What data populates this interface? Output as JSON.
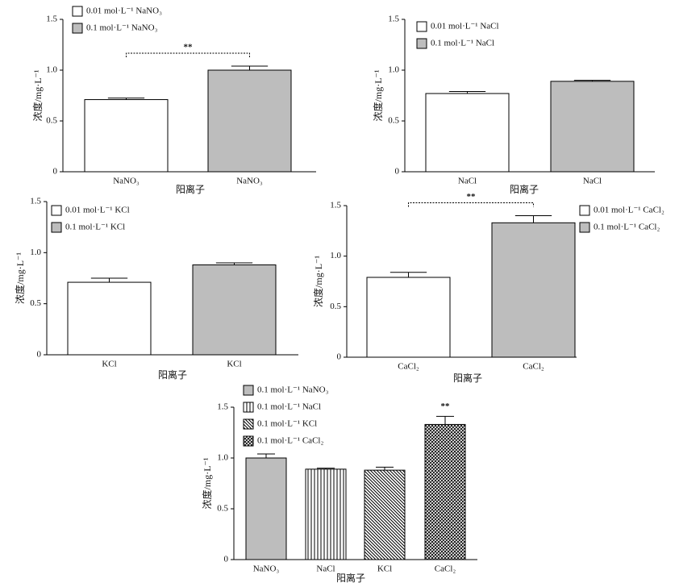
{
  "chart_data": [
    {
      "type": "bar",
      "ylabel": "浓度/mg·L⁻¹",
      "xlabel": "阳离子",
      "categories": [
        "NaNO₃",
        "NaNO₃"
      ],
      "series": [
        {
          "name": "0.01 mol·L⁻¹ NaNO₃",
          "color": "#ffffff",
          "pattern": "solid",
          "values": [
            0.71,
            null
          ],
          "errors": [
            0.015,
            null
          ]
        },
        {
          "name": "0.1 mol·L⁻¹ NaNO₃",
          "color": "#bdbdbd",
          "pattern": "solid",
          "values": [
            null,
            1.0
          ],
          "errors": [
            null,
            0.04
          ]
        }
      ],
      "ylim": [
        0,
        1.5
      ],
      "yticks": [
        0,
        0.5,
        {
          "value": 1,
          "label": "1.0"
        },
        1.5
      ],
      "annotation": "**",
      "annotation_style": "bracket"
    },
    {
      "type": "bar",
      "ylabel": "浓度/mg·L⁻¹",
      "xlabel": "阳离子",
      "categories": [
        "NaCl",
        "NaCl"
      ],
      "series": [
        {
          "name": "0.01 mol·L⁻¹ NaCl",
          "color": "#ffffff",
          "pattern": "solid",
          "values": [
            0.77,
            null
          ],
          "errors": [
            0.02,
            null
          ]
        },
        {
          "name": "0.1 mol·L⁻¹ NaCl",
          "color": "#bdbdbd",
          "pattern": "solid",
          "values": [
            null,
            0.89
          ],
          "errors": [
            null,
            0.01
          ]
        }
      ],
      "ylim": [
        0,
        1.5
      ],
      "yticks": [
        0,
        0.5,
        {
          "value": 1,
          "label": "1.0"
        },
        1.5
      ]
    },
    {
      "type": "bar",
      "ylabel": "浓度/mg·L⁻¹",
      "xlabel": "阳离子",
      "categories": [
        "KCl",
        "KCl"
      ],
      "series": [
        {
          "name": "0.01 mol·L⁻¹ KCl",
          "color": "#ffffff",
          "pattern": "solid",
          "values": [
            0.71,
            null
          ],
          "errors": [
            0.04,
            null
          ]
        },
        {
          "name": "0.1 mol·L⁻¹ KCl",
          "color": "#bdbdbd",
          "pattern": "solid",
          "values": [
            null,
            0.88
          ],
          "errors": [
            null,
            0.02
          ]
        }
      ],
      "ylim": [
        0,
        1.5
      ],
      "yticks": [
        0,
        0.5,
        {
          "value": 1,
          "label": "1.0"
        },
        1.5
      ]
    },
    {
      "type": "bar",
      "ylabel": "浓度/mg·L⁻¹",
      "xlabel": "阳离子",
      "categories": [
        "CaCl₂",
        "CaCl₂"
      ],
      "series": [
        {
          "name": "0.01 mol·L⁻¹ CaCl₂",
          "color": "#ffffff",
          "pattern": "solid",
          "values": [
            0.79,
            null
          ],
          "errors": [
            0.05,
            null
          ]
        },
        {
          "name": "0.1 mol·L⁻¹ CaCl₂",
          "color": "#bdbdbd",
          "pattern": "solid",
          "values": [
            null,
            1.33
          ],
          "errors": [
            null,
            0.07
          ]
        }
      ],
      "ylim": [
        0,
        1.5
      ],
      "yticks": [
        0,
        0.5,
        {
          "value": 1,
          "label": "1.0"
        },
        1.5
      ],
      "annotation": "**",
      "annotation_style": "bracket"
    },
    {
      "type": "bar",
      "ylabel": "浓度/mg·L⁻¹",
      "xlabel": "阳离子",
      "categories": [
        "NaNO₃",
        "NaCl",
        "KCl",
        "CaCl₂"
      ],
      "series": [
        {
          "name": "0.1 mol·L⁻¹ NaNO₃",
          "color": "#bdbdbd",
          "pattern": "solid",
          "values": [
            1.0,
            null,
            null,
            null
          ],
          "errors": [
            0.04,
            null,
            null,
            null
          ]
        },
        {
          "name": "0.1 mol·L⁻¹ NaCl",
          "color": "#ffffff",
          "pattern": "vertical",
          "values": [
            null,
            0.89,
            null,
            null
          ],
          "errors": [
            null,
            0.01,
            null,
            null
          ]
        },
        {
          "name": "0.1 mol·L⁻¹ KCl",
          "color": "#ffffff",
          "pattern": "diagonal",
          "values": [
            null,
            null,
            0.88,
            null
          ],
          "errors": [
            null,
            null,
            0.03,
            null
          ]
        },
        {
          "name": "0.1 mol·L⁻¹ CaCl₂",
          "color": "#ffffff",
          "pattern": "crosshatch",
          "values": [
            null,
            null,
            null,
            1.33
          ],
          "errors": [
            null,
            null,
            null,
            0.08
          ]
        }
      ],
      "ylim": [
        0,
        1.5
      ],
      "yticks": [
        0,
        0.5,
        {
          "value": 1,
          "label": "1.0"
        },
        1.5
      ],
      "annotation": "**",
      "annotation_style": "above"
    }
  ]
}
